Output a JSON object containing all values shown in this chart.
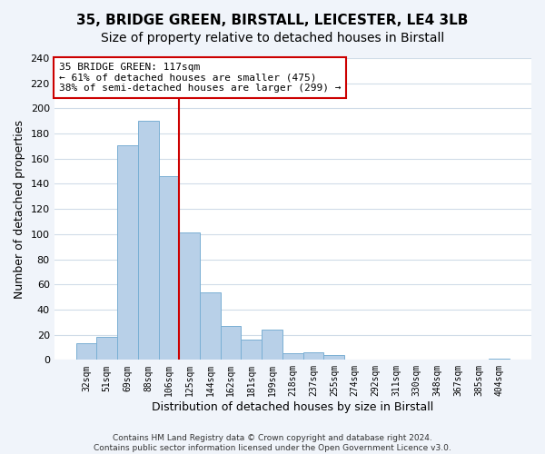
{
  "title1": "35, BRIDGE GREEN, BIRSTALL, LEICESTER, LE4 3LB",
  "title2": "Size of property relative to detached houses in Birstall",
  "xlabel": "Distribution of detached houses by size in Birstall",
  "ylabel": "Number of detached properties",
  "bar_labels": [
    "32sqm",
    "51sqm",
    "69sqm",
    "88sqm",
    "106sqm",
    "125sqm",
    "144sqm",
    "162sqm",
    "181sqm",
    "199sqm",
    "218sqm",
    "237sqm",
    "255sqm",
    "274sqm",
    "292sqm",
    "311sqm",
    "330sqm",
    "348sqm",
    "367sqm",
    "385sqm",
    "404sqm"
  ],
  "bar_values": [
    13,
    18,
    171,
    190,
    146,
    101,
    54,
    27,
    16,
    24,
    5,
    6,
    4,
    0,
    0,
    0,
    0,
    0,
    0,
    0,
    1
  ],
  "bar_color": "#b8d0e8",
  "bar_edge_color": "#7aafd4",
  "vline_x_index": 5,
  "vline_color": "#cc0000",
  "annotation_line1": "35 BRIDGE GREEN: 117sqm",
  "annotation_line2": "← 61% of detached houses are smaller (475)",
  "annotation_line3": "38% of semi-detached houses are larger (299) →",
  "annotation_box_color": "#ffffff",
  "annotation_box_edge_color": "#cc0000",
  "ylim": [
    0,
    240
  ],
  "yticks": [
    0,
    20,
    40,
    60,
    80,
    100,
    120,
    140,
    160,
    180,
    200,
    220,
    240
  ],
  "footer1": "Contains HM Land Registry data © Crown copyright and database right 2024.",
  "footer2": "Contains public sector information licensed under the Open Government Licence v3.0.",
  "fig_background_color": "#f0f4fa",
  "plot_background_color": "#ffffff",
  "grid_color": "#d0dce8",
  "title1_fontsize": 11,
  "title2_fontsize": 10
}
